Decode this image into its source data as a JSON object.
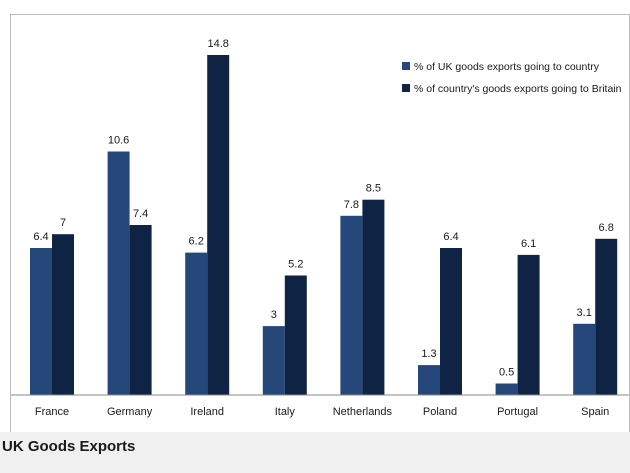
{
  "caption": "UK Goods Exports",
  "colors": {
    "series1": "#25477a",
    "series2": "#0f2444",
    "axis": "#8a8a8a"
  },
  "chart_data": {
    "type": "bar",
    "title": "",
    "xlabel": "",
    "ylabel": "",
    "ylim": [
      0,
      16
    ],
    "grid": false,
    "legend_position": "top-right",
    "categories": [
      "France",
      "Germany",
      "Ireland",
      "Italy",
      "Netherlands",
      "Poland",
      "Portugal",
      "Spain"
    ],
    "series": [
      {
        "name": "% of UK goods exports going to country",
        "values": [
          6.4,
          10.6,
          6.2,
          3,
          7.8,
          1.3,
          0.5,
          3.1
        ]
      },
      {
        "name": "% of country's goods exports going to Britain",
        "values": [
          7,
          7.4,
          14.8,
          5.2,
          8.5,
          6.4,
          6.1,
          6.8
        ]
      }
    ]
  }
}
